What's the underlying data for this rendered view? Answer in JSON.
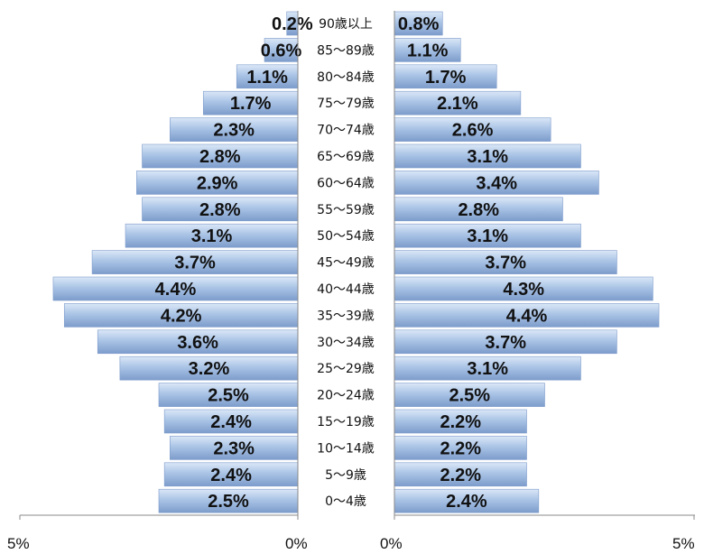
{
  "chart_data": {
    "type": "bar",
    "orientation": "horizontal",
    "layout": "population-pyramid",
    "categories": [
      "90歳以上",
      "85～89歳",
      "80～84歳",
      "75～79歳",
      "70～74歳",
      "65～69歳",
      "60～64歳",
      "55～59歳",
      "50～54歳",
      "45～49歳",
      "40～44歳",
      "35～39歳",
      "30～34歳",
      "25～29歳",
      "20～24歳",
      "15～19歳",
      "10～14歳",
      "5～9歳",
      "0～4歳"
    ],
    "series": [
      {
        "side": "left",
        "values": [
          0.2,
          0.6,
          1.1,
          1.7,
          2.3,
          2.8,
          2.9,
          2.8,
          3.1,
          3.7,
          4.4,
          4.2,
          3.6,
          3.2,
          2.5,
          2.4,
          2.3,
          2.4,
          2.5
        ],
        "labels": [
          "0.2%",
          "0.6%",
          "1.1%",
          "1.7%",
          "2.3%",
          "2.8%",
          "2.9%",
          "2.8%",
          "3.1%",
          "3.7%",
          "4.4%",
          "4.2%",
          "3.6%",
          "3.2%",
          "2.5%",
          "2.4%",
          "2.3%",
          "2.4%",
          "2.5%"
        ]
      },
      {
        "side": "right",
        "values": [
          0.8,
          1.1,
          1.7,
          2.1,
          2.6,
          3.1,
          3.4,
          2.8,
          3.1,
          3.7,
          4.3,
          4.4,
          3.7,
          3.1,
          2.5,
          2.2,
          2.2,
          2.2,
          2.4
        ],
        "labels": [
          "0.8%",
          "1.1%",
          "1.7%",
          "2.1%",
          "2.6%",
          "3.1%",
          "3.4%",
          "2.8%",
          "3.1%",
          "3.7%",
          "4.3%",
          "4.4%",
          "3.7%",
          "3.1%",
          "2.5%",
          "2.2%",
          "2.2%",
          "2.2%",
          "2.4%"
        ]
      }
    ],
    "left_axis": {
      "ticks": [
        "5%",
        "0%"
      ],
      "range": [
        5,
        0
      ]
    },
    "right_axis": {
      "ticks": [
        "0%",
        "5%"
      ],
      "range": [
        0,
        5
      ]
    },
    "colors": {
      "bar_light": "#dbe7f7",
      "bar_mid": "#aac4e6",
      "bar_dark": "#7d9ccb",
      "axis": "#888888",
      "text": "#111111"
    },
    "grid": false,
    "legend": "none"
  }
}
